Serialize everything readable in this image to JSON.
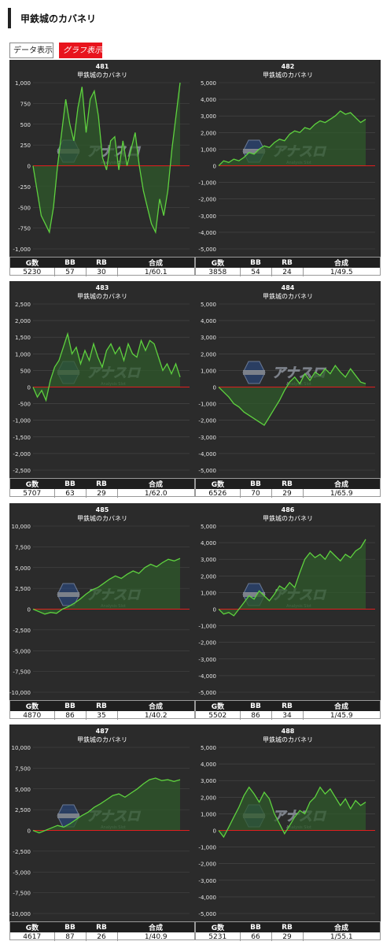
{
  "header": {
    "title": "甲鉄城のカバネリ"
  },
  "tabs": [
    {
      "label": "データ表示",
      "active": false
    },
    {
      "label": "グラフ表示",
      "active": true
    }
  ],
  "logo": {
    "text": "アナスロ",
    "subtext": "Analysis Slot"
  },
  "colors": {
    "panel_bg": "#2b2b2b",
    "line": "#5ed13f",
    "fill": "#2f5a2b",
    "zero_line": "#e01e1e",
    "grid": "#4a4a4a",
    "accent_tab": "#e8141d"
  },
  "stats_headers": [
    "G数",
    "BB",
    "RB",
    "合成"
  ],
  "chart_data": [
    {
      "type": "area",
      "machine_no": "481",
      "title": "甲鉄城のカバネリ",
      "ylim": [
        -1000,
        1000
      ],
      "yticks": [
        -1000,
        -750,
        -500,
        -250,
        0,
        250,
        500,
        750,
        1000
      ],
      "y_labels": [
        "-1,000",
        "-750",
        "-500",
        "-250",
        "0",
        "250",
        "500",
        "750",
        "1,000"
      ],
      "values": [
        0,
        -300,
        -600,
        -700,
        -800,
        -500,
        0,
        400,
        800,
        500,
        300,
        700,
        950,
        400,
        800,
        900,
        600,
        100,
        -50,
        300,
        350,
        -50,
        300,
        0,
        200,
        400,
        0,
        -300,
        -500,
        -700,
        -800,
        -400,
        -600,
        -300,
        200,
        600,
        1000
      ],
      "stats": {
        "games": "5230",
        "bb": "57",
        "rb": "30",
        "combined": "1/60.1"
      }
    },
    {
      "type": "area",
      "machine_no": "482",
      "title": "甲鉄城のカバネリ",
      "ylim": [
        -5000,
        5000
      ],
      "yticks": [
        -5000,
        -4000,
        -3000,
        -2000,
        -1000,
        0,
        1000,
        2000,
        3000,
        4000,
        5000
      ],
      "y_labels": [
        "-5,000",
        "-4,000",
        "-3,000",
        "-2,000",
        "-1,000",
        "0",
        "1,000",
        "2,000",
        "3,000",
        "4,000",
        "5,000"
      ],
      "values": [
        0,
        300,
        200,
        400,
        300,
        500,
        800,
        700,
        1000,
        1200,
        1100,
        1400,
        1600,
        1500,
        1900,
        2100,
        2000,
        2300,
        2200,
        2500,
        2700,
        2600,
        2800,
        3000,
        3300,
        3100,
        3200,
        2900,
        2600,
        2800
      ],
      "stats": {
        "games": "3858",
        "bb": "54",
        "rb": "24",
        "combined": "1/49.5"
      }
    },
    {
      "type": "area",
      "machine_no": "483",
      "title": "甲鉄城のカバネリ",
      "ylim": [
        -2500,
        2500
      ],
      "yticks": [
        -2500,
        -2000,
        -1500,
        -1000,
        -500,
        0,
        500,
        1000,
        1500,
        2000,
        2500
      ],
      "y_labels": [
        "-2,500",
        "-2,000",
        "-1,500",
        "-1,000",
        "-500",
        "0",
        "500",
        "1,000",
        "1,500",
        "2,000",
        "2,500"
      ],
      "values": [
        0,
        -300,
        -100,
        -400,
        200,
        600,
        800,
        1200,
        1600,
        1000,
        1200,
        700,
        1100,
        800,
        1300,
        900,
        600,
        1100,
        1300,
        1000,
        1200,
        800,
        1300,
        1000,
        900,
        1400,
        1100,
        1400,
        1300,
        900,
        500,
        700,
        400,
        700,
        300
      ],
      "stats": {
        "games": "5707",
        "bb": "63",
        "rb": "29",
        "combined": "1/62.0"
      }
    },
    {
      "type": "area",
      "machine_no": "484",
      "title": "甲鉄城のカバネリ",
      "ylim": [
        -5000,
        5000
      ],
      "yticks": [
        -5000,
        -4000,
        -3000,
        -2000,
        -1000,
        0,
        1000,
        2000,
        3000,
        4000,
        5000
      ],
      "y_labels": [
        "-5,000",
        "-4,000",
        "-3,000",
        "-2,000",
        "-1,000",
        "0",
        "1,000",
        "2,000",
        "3,000",
        "4,000",
        "5,000"
      ],
      "values": [
        0,
        -300,
        -600,
        -1000,
        -1200,
        -1500,
        -1700,
        -1900,
        -2100,
        -2300,
        -1800,
        -1300,
        -800,
        -200,
        300,
        600,
        200,
        800,
        400,
        900,
        700,
        1100,
        800,
        1300,
        900,
        600,
        1100,
        700,
        300,
        200
      ],
      "stats": {
        "games": "6526",
        "bb": "70",
        "rb": "29",
        "combined": "1/65.9"
      }
    },
    {
      "type": "area",
      "machine_no": "485",
      "title": "甲鉄城のカバネリ",
      "ylim": [
        -10000,
        10000
      ],
      "yticks": [
        -10000,
        -7500,
        -5000,
        -2500,
        0,
        2500,
        5000,
        7500,
        10000
      ],
      "y_labels": [
        "-10,000",
        "-7,500",
        "-5,000",
        "-2,500",
        "0",
        "2,500",
        "5,000",
        "7,500",
        "10,000"
      ],
      "values": [
        0,
        -300,
        -600,
        -400,
        -500,
        0,
        300,
        700,
        1200,
        1800,
        2300,
        2600,
        3100,
        3600,
        4000,
        3700,
        4200,
        4600,
        4300,
        5000,
        5400,
        5100,
        5600,
        6000,
        5800,
        6100
      ],
      "stats": {
        "games": "4870",
        "bb": "86",
        "rb": "35",
        "combined": "1/40.2"
      }
    },
    {
      "type": "area",
      "machine_no": "486",
      "title": "甲鉄城のカバネリ",
      "ylim": [
        -5000,
        5000
      ],
      "yticks": [
        -5000,
        -4000,
        -3000,
        -2000,
        -1000,
        0,
        1000,
        2000,
        3000,
        4000,
        5000
      ],
      "y_labels": [
        "-5,000",
        "-4,000",
        "-3,000",
        "-2,000",
        "-1,000",
        "0",
        "1,000",
        "2,000",
        "3,000",
        "4,000",
        "5,000"
      ],
      "values": [
        0,
        -300,
        -200,
        -400,
        0,
        400,
        800,
        600,
        1100,
        800,
        500,
        900,
        1400,
        1200,
        1600,
        1300,
        2200,
        3000,
        3400,
        3100,
        3300,
        3000,
        3500,
        3200,
        2900,
        3300,
        3100,
        3500,
        3700,
        4200
      ],
      "stats": {
        "games": "5502",
        "bb": "86",
        "rb": "34",
        "combined": "1/45.9"
      }
    },
    {
      "type": "area",
      "machine_no": "487",
      "title": "甲鉄城のカバネリ",
      "ylim": [
        -10000,
        10000
      ],
      "yticks": [
        -10000,
        -7500,
        -5000,
        -2500,
        0,
        2500,
        5000,
        7500,
        10000
      ],
      "y_labels": [
        "-10,000",
        "-7,500",
        "-5,000",
        "-2,500",
        "0",
        "2,500",
        "5,000",
        "7,500",
        "10,000"
      ],
      "values": [
        0,
        -300,
        0,
        300,
        600,
        400,
        800,
        1300,
        1800,
        2200,
        2800,
        3200,
        3700,
        4200,
        4400,
        4000,
        4500,
        5000,
        5600,
        6100,
        6300,
        6000,
        6100,
        5900,
        6100
      ],
      "stats": {
        "games": "4617",
        "bb": "87",
        "rb": "26",
        "combined": "1/40.9"
      }
    },
    {
      "type": "area",
      "machine_no": "488",
      "title": "甲鉄城のカバネリ",
      "ylim": [
        -5000,
        5000
      ],
      "yticks": [
        -5000,
        -4000,
        -3000,
        -2000,
        -1000,
        0,
        1000,
        2000,
        3000,
        4000,
        5000
      ],
      "y_labels": [
        "-5,000",
        "-4,000",
        "-3,000",
        "-2,000",
        "-1,000",
        "0",
        "1,000",
        "2,000",
        "3,000",
        "4,000",
        "5,000"
      ],
      "values": [
        0,
        -400,
        200,
        800,
        1400,
        2100,
        2600,
        2200,
        1700,
        2300,
        1900,
        1000,
        400,
        -200,
        300,
        800,
        1200,
        1000,
        1700,
        2000,
        2600,
        2200,
        2500,
        2000,
        1500,
        1900,
        1300,
        1800,
        1500,
        1700
      ],
      "stats": {
        "games": "5231",
        "bb": "66",
        "rb": "29",
        "combined": "1/55.1"
      }
    }
  ]
}
